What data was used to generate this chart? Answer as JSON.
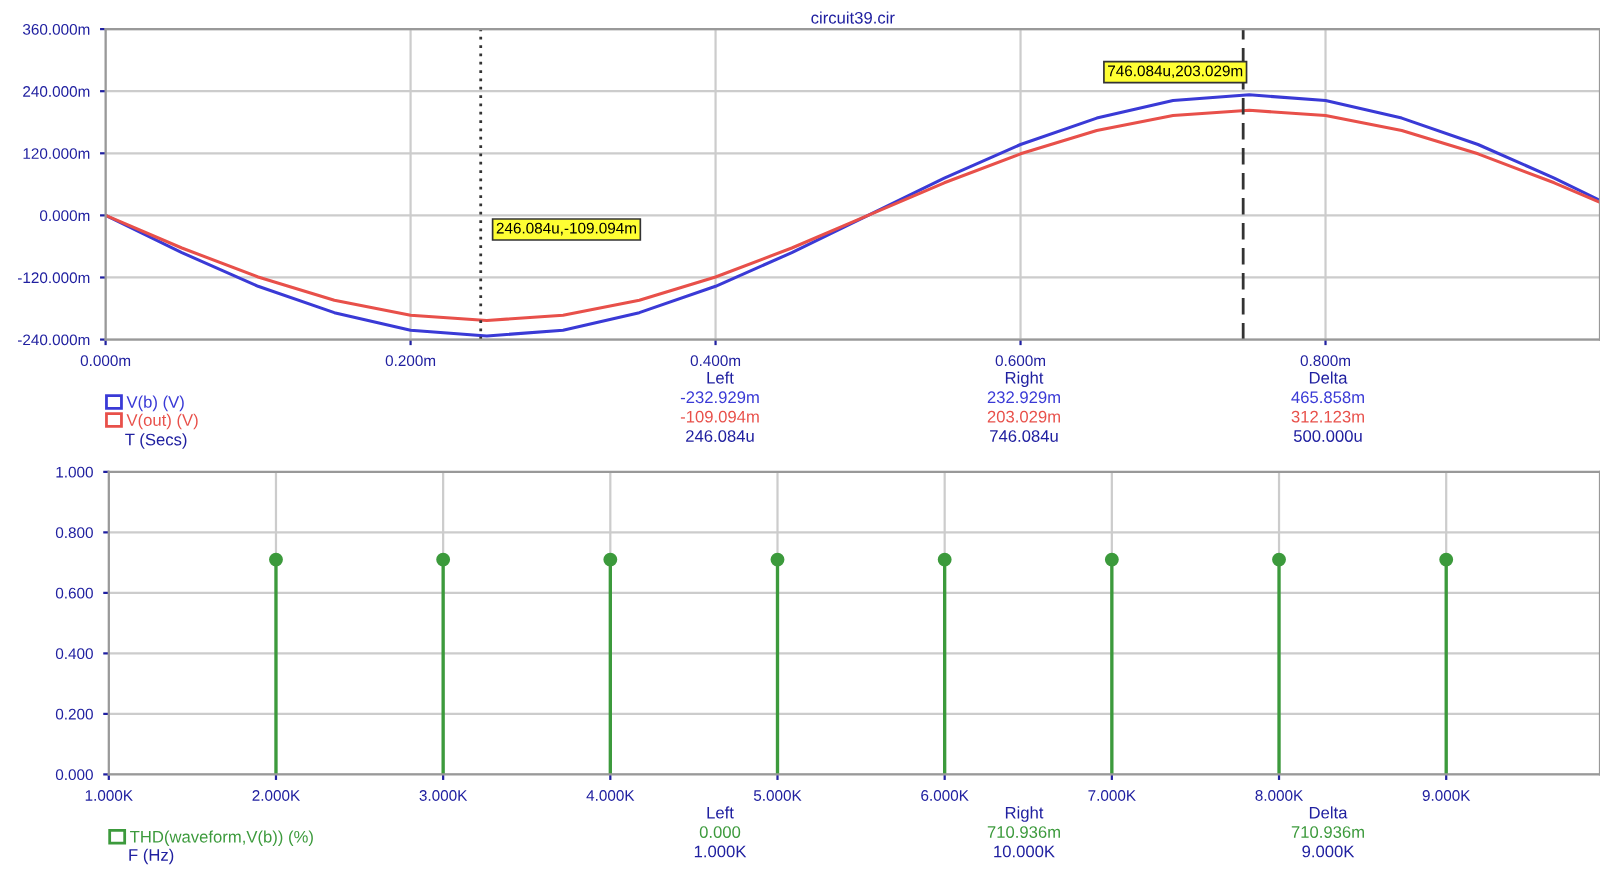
{
  "chart_data": [
    {
      "type": "line",
      "title": "circuit39.cir",
      "xlabel": "T (Secs)",
      "x": [
        0,
        0.05,
        0.1,
        0.15,
        0.2,
        0.25,
        0.3,
        0.35,
        0.4,
        0.45,
        0.5,
        0.55,
        0.6,
        0.65,
        0.7,
        0.75,
        0.8,
        0.85,
        0.9,
        0.95,
        0.98
      ],
      "series": [
        {
          "name": "V(b) (V)",
          "color": "#3a3ad6",
          "values": [
            0,
            -72,
            -137,
            -188,
            -222,
            -233,
            -222,
            -188,
            -137,
            -72,
            0,
            72,
            137,
            188,
            222,
            233,
            222,
            188,
            137,
            72,
            29
          ]
        },
        {
          "name": "V(out) (V)",
          "color": "#e8504a",
          "values": [
            0,
            -63,
            -119,
            -164,
            -193,
            -203,
            -193,
            -164,
            -119,
            -63,
            0,
            63,
            119,
            164,
            193,
            203,
            193,
            164,
            119,
            63,
            25
          ]
        }
      ],
      "xlim": [
        0,
        0.98
      ],
      "xticks": [
        {
          "value": 0,
          "label": "0.000m"
        },
        {
          "value": 0.2,
          "label": "0.200m"
        },
        {
          "value": 0.4,
          "label": "0.400m"
        },
        {
          "value": 0.6,
          "label": "0.600m"
        },
        {
          "value": 0.8,
          "label": "0.800m"
        }
      ],
      "ylim": [
        -240,
        360
      ],
      "yticks": [
        {
          "value": -240,
          "label": "-240.000m"
        },
        {
          "value": -120,
          "label": "-120.000m"
        },
        {
          "value": 0,
          "label": "0.000m"
        },
        {
          "value": 120,
          "label": "120.000m"
        },
        {
          "value": 240,
          "label": "240.000m"
        },
        {
          "value": 360,
          "label": "360.000m"
        }
      ],
      "ref_lines": [
        {
          "axis": "x",
          "value": 0.246,
          "label": "246.084u,-109.094m",
          "color": "#333333",
          "line_style": "dotted"
        },
        {
          "axis": "x",
          "value": 0.746,
          "label": "746.084u,203.029m",
          "color": "#333333",
          "line_style": "dashed"
        }
      ],
      "annotations": [
        "Left",
        "Right",
        "Delta",
        "-232.929m",
        "232.929m",
        "465.858m",
        "-109.094m",
        "203.029m",
        "312.123m",
        "246.084u",
        "746.084u",
        "500.000u"
      ],
      "grid": true,
      "legend": "bottom left",
      "marker": "none",
      "line_style": "solid"
    },
    {
      "type": "lollipop",
      "xlabel": "F (Hz)",
      "x": [
        2,
        3,
        4,
        5,
        6,
        7,
        8,
        9
      ],
      "series": [
        {
          "name": "THD(waveform,V(b)) (%)",
          "color": "#3c9a3c",
          "values": [
            0.71,
            0.71,
            0.71,
            0.71,
            0.71,
            0.71,
            0.71,
            0.71
          ]
        }
      ],
      "xlim": [
        1,
        9.92
      ],
      "xticks": [
        {
          "value": 1,
          "label": "1.000K"
        },
        {
          "value": 2,
          "label": "2.000K"
        },
        {
          "value": 3,
          "label": "3.000K"
        },
        {
          "value": 4,
          "label": "4.000K"
        },
        {
          "value": 5,
          "label": "5.000K"
        },
        {
          "value": 6,
          "label": "6.000K"
        },
        {
          "value": 7,
          "label": "7.000K"
        },
        {
          "value": 8,
          "label": "8.000K"
        },
        {
          "value": 9,
          "label": "9.000K"
        }
      ],
      "ylim": [
        0,
        1
      ],
      "yticks": [
        {
          "value": 0,
          "label": "0.000"
        },
        {
          "value": 0.2,
          "label": "0.200"
        },
        {
          "value": 0.4,
          "label": "0.400"
        },
        {
          "value": 0.6,
          "label": "0.600"
        },
        {
          "value": 0.8,
          "label": "0.800"
        },
        {
          "value": 1,
          "label": "1.000"
        }
      ],
      "annotations": [
        "Left",
        "Right",
        "Delta",
        "0.000",
        "710.936m",
        "710.936m",
        "1.000K",
        "10.000K",
        "9.000K"
      ],
      "grid": true,
      "legend": "bottom left",
      "marker": "circle"
    }
  ]
}
